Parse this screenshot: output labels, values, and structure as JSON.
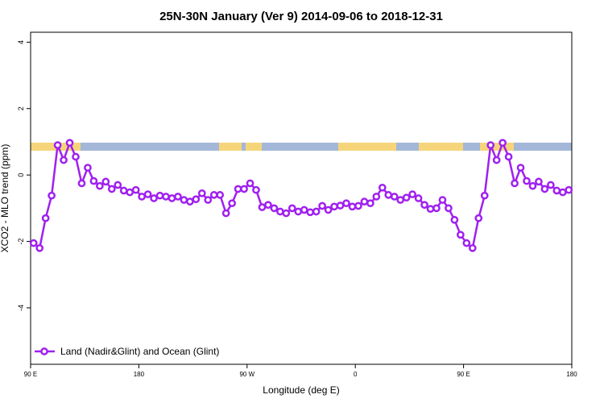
{
  "chart_data": {
    "type": "line",
    "title": "25N-30N January (Ver 9)   2014-09-06 to 2018-12-31",
    "xlabel": "Longitude (deg E)",
    "ylabel": "XCO2 - MLO trend (ppm)",
    "xlim": [
      90,
      540
    ],
    "ylim": [
      -5.7,
      4.3
    ],
    "xticks": [
      {
        "value": 90,
        "label": "90 E"
      },
      180,
      {
        "value": 270,
        "label": "90 W"
      },
      {
        "value": 360,
        "label": "0"
      },
      {
        "value": 450,
        "label": "90 E"
      },
      {
        "value": 540,
        "label": "180"
      }
    ],
    "yticks": [
      -4,
      -2,
      0,
      2,
      4
    ],
    "legend": "bottom-left",
    "x": [
      92.5,
      97.5,
      102.5,
      107.5,
      112.5,
      117.5,
      122.5,
      127.5,
      132.5,
      137.5,
      142.5,
      147.5,
      152.5,
      157.5,
      162.5,
      167.5,
      172.5,
      177.5,
      182.5,
      187.5,
      192.5,
      197.5,
      202.5,
      207.5,
      212.5,
      217.5,
      222.5,
      227.5,
      232.5,
      237.5,
      242.5,
      247.5,
      252.5,
      257.5,
      262.5,
      267.5,
      272.5,
      277.5,
      282.5,
      287.5,
      292.5,
      297.5,
      302.5,
      307.5,
      312.5,
      317.5,
      322.5,
      327.5,
      332.5,
      337.5,
      342.5,
      347.5,
      352.5,
      357.5,
      362.5,
      367.5,
      372.5,
      377.5,
      382.5,
      387.5,
      392.5,
      397.5,
      402.5,
      407.5,
      412.5,
      417.5,
      422.5,
      427.5,
      432.5,
      437.5,
      442.5,
      447.5,
      452.5,
      457.5,
      462.5,
      467.5,
      472.5,
      477.5,
      482.5,
      487.5,
      492.5,
      497.5,
      502.5,
      507.5,
      512.5,
      517.5,
      522.5,
      527.5,
      532.5,
      537.5
    ],
    "series": [
      {
        "name": "Land (Nadir&Glint) and Ocean (Glint)",
        "color": "#a020f0",
        "values": [
          -2.05,
          -2.2,
          -1.3,
          -0.62,
          0.9,
          0.45,
          0.97,
          0.55,
          -0.25,
          0.22,
          -0.18,
          -0.33,
          -0.2,
          -0.42,
          -0.3,
          -0.47,
          -0.52,
          -0.45,
          -0.65,
          -0.58,
          -0.7,
          -0.62,
          -0.65,
          -0.7,
          -0.65,
          -0.75,
          -0.8,
          -0.73,
          -0.55,
          -0.75,
          -0.6,
          -0.6,
          -1.15,
          -0.85,
          -0.42,
          -0.42,
          -0.25,
          -0.45,
          -0.97,
          -0.9,
          -1.0,
          -1.1,
          -1.15,
          -1.0,
          -1.1,
          -1.05,
          -1.12,
          -1.1,
          -0.93,
          -1.05,
          -0.95,
          -0.92,
          -0.85,
          -0.95,
          -0.93,
          -0.8,
          -0.85,
          -0.65,
          -0.38,
          -0.6,
          -0.65,
          -0.75,
          -0.68,
          -0.58,
          -0.7,
          -0.9,
          -1.02,
          -1.0,
          -0.75,
          -1.0,
          -1.35,
          -1.8,
          -2.05,
          -2.2,
          -1.3,
          -0.62,
          0.9,
          0.45,
          0.97,
          0.55,
          -0.25,
          0.22,
          -0.18,
          -0.33,
          -0.2,
          -0.42,
          -0.3,
          -0.47,
          -0.52,
          -0.45
        ]
      }
    ]
  }
}
